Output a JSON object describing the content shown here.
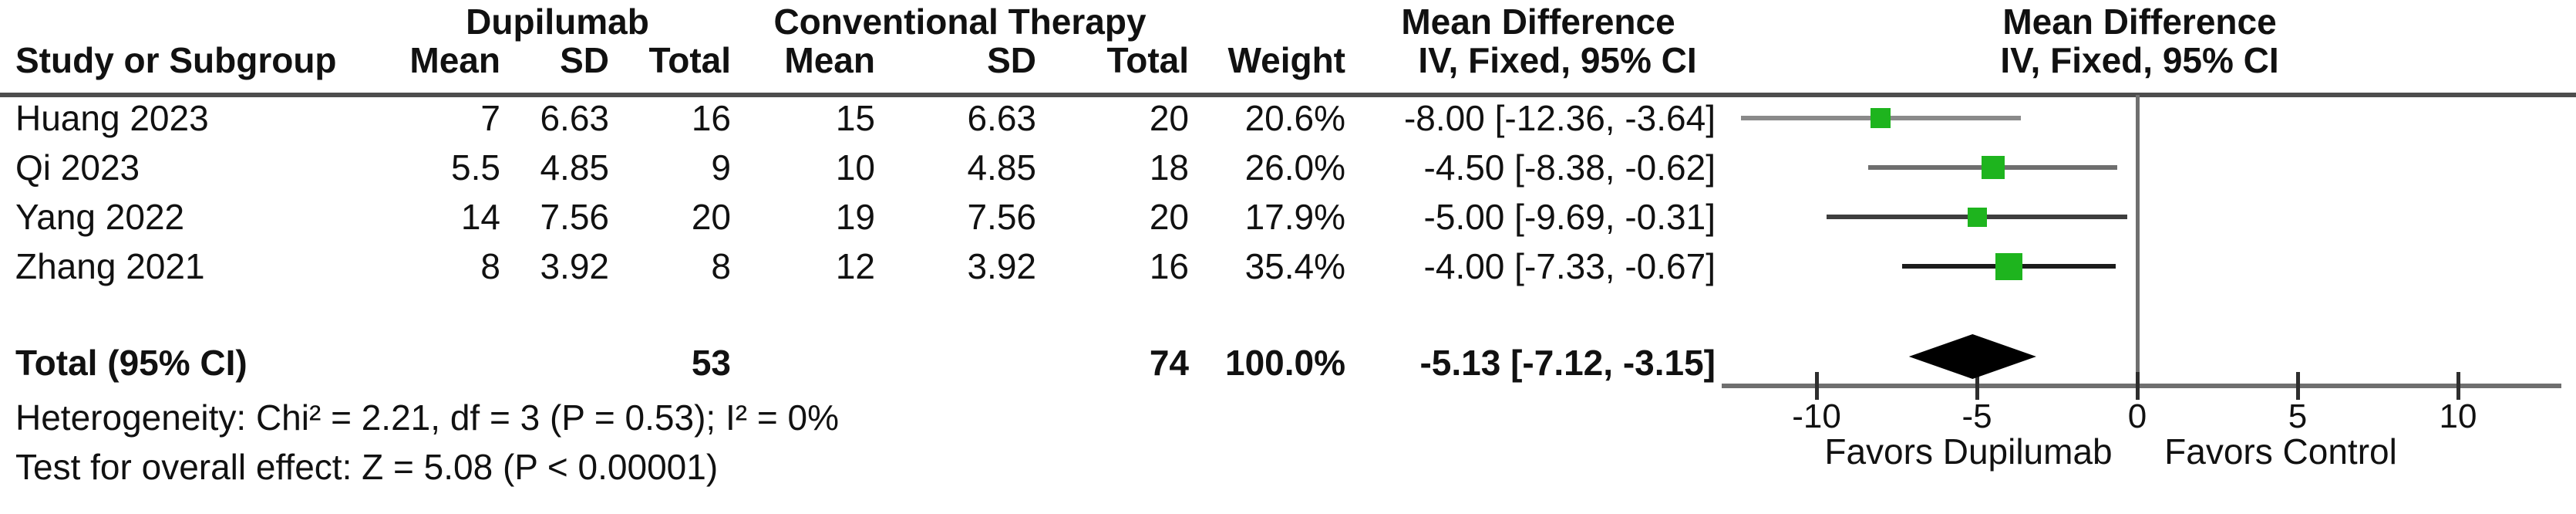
{
  "header": {
    "study_col": "Study or Subgroup",
    "group1": "Dupilumab",
    "group2": "Conventional Therapy",
    "mean": "Mean",
    "sd": "SD",
    "total": "Total",
    "weight": "Weight",
    "md_title": "Mean Difference",
    "md_sub": "IV, Fixed, 95% CI"
  },
  "table": {
    "rows": [
      {
        "study": "Huang 2023",
        "mean1": "7",
        "sd1": "6.63",
        "total1": "16",
        "mean2": "15",
        "sd2": "6.63",
        "total2": "20",
        "weight": "20.6%",
        "ci_text": "-8.00 [-12.36, -3.64]"
      },
      {
        "study": "Qi 2023",
        "mean1": "5.5",
        "sd1": "4.85",
        "total1": "9",
        "mean2": "10",
        "sd2": "4.85",
        "total2": "18",
        "weight": "26.0%",
        "ci_text": "-4.50 [-8.38, -0.62]"
      },
      {
        "study": "Yang 2022",
        "mean1": "14",
        "sd1": "7.56",
        "total1": "20",
        "mean2": "19",
        "sd2": "7.56",
        "total2": "20",
        "weight": "17.9%",
        "ci_text": "-5.00 [-9.69, -0.31]"
      },
      {
        "study": "Zhang 2021",
        "mean1": "8",
        "sd1": "3.92",
        "total1": "8",
        "mean2": "12",
        "sd2": "3.92",
        "total2": "16",
        "weight": "35.4%",
        "ci_text": "-4.00 [-7.33, -0.67]"
      }
    ],
    "total_row": {
      "label": "Total (95% CI)",
      "total1": "53",
      "total2": "74",
      "weight": "100.0%",
      "ci_text": "-5.13 [-7.12, -3.15]"
    }
  },
  "footnotes": {
    "heterogeneity": "Heterogeneity: Chi² = 2.21, df = 3 (P = 0.53); I² = 0%",
    "overall_effect": "Test for overall effect: Z = 5.08 (P < 0.00001)"
  },
  "colors": {
    "marker_green": "#1eb41e",
    "diamond_black": "#000000",
    "axis_gray": "#6f6f6f"
  },
  "chart_data": {
    "type": "forest",
    "effect_measure": "Mean Difference IV, Fixed, 95% CI",
    "group_experimental": "Dupilumab",
    "group_control": "Conventional Therapy",
    "studies": [
      {
        "name": "Huang 2023",
        "md": -8.0,
        "ci_low": -12.36,
        "ci_high": -3.64,
        "weight_pct": 20.6
      },
      {
        "name": "Qi 2023",
        "md": -4.5,
        "ci_low": -8.38,
        "ci_high": -0.62,
        "weight_pct": 26.0
      },
      {
        "name": "Yang 2022",
        "md": -5.0,
        "ci_low": -9.69,
        "ci_high": -0.31,
        "weight_pct": 17.9
      },
      {
        "name": "Zhang 2021",
        "md": -4.0,
        "ci_low": -7.33,
        "ci_high": -0.67,
        "weight_pct": 35.4
      }
    ],
    "total": {
      "md": -5.13,
      "ci_low": -7.12,
      "ci_high": -3.15,
      "weight_pct": 100.0
    },
    "x_ticks": [
      -10,
      -5,
      0,
      5,
      10
    ],
    "x_range": [
      -12.96,
      13.22
    ],
    "favors_left": "Favors Dupilumab",
    "favors_right": "Favors Control"
  }
}
